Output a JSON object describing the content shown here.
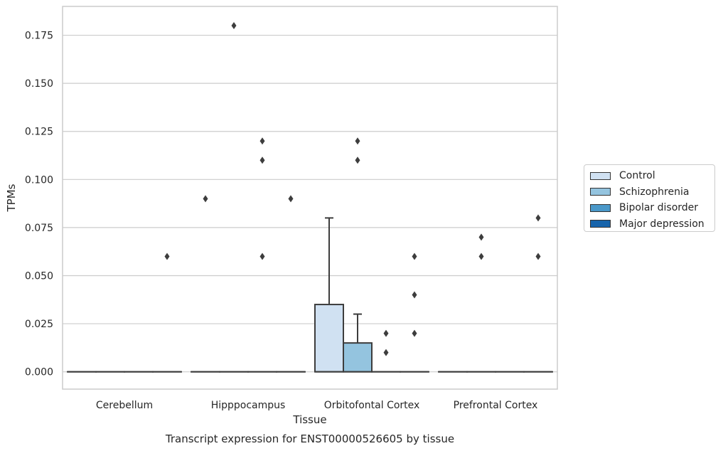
{
  "chart_data": {
    "type": "box",
    "title": "Transcript expression for ENST00000526605 by tissue",
    "xlabel": "Tissue",
    "ylabel": "TPMs",
    "ylim": [
      -0.009,
      0.19
    ],
    "yticks": [
      "0.000",
      "0.025",
      "0.050",
      "0.075",
      "0.100",
      "0.125",
      "0.150",
      "0.175"
    ],
    "categories": [
      "Cerebellum",
      "Hipppocampus",
      "Orbitofontal Cortex",
      "Prefrontal Cortex"
    ],
    "grid": true,
    "legend_position": "right",
    "series": [
      {
        "name": "Control",
        "color": "#d0e1f2",
        "boxes": [
          {
            "q1": 0,
            "median": 0,
            "q3": 0,
            "whisker_low": 0,
            "whisker_high": 0,
            "outliers": []
          },
          {
            "q1": 0,
            "median": 0,
            "q3": 0,
            "whisker_low": 0,
            "whisker_high": 0,
            "outliers": [
              0.09
            ]
          },
          {
            "q1": 0,
            "median": 0,
            "q3": 0.035,
            "whisker_low": 0,
            "whisker_high": 0.08,
            "outliers": []
          },
          {
            "q1": 0,
            "median": 0,
            "q3": 0,
            "whisker_low": 0,
            "whisker_high": 0,
            "outliers": []
          }
        ]
      },
      {
        "name": "Schizophrenia",
        "color": "#94c4df",
        "boxes": [
          {
            "q1": 0,
            "median": 0,
            "q3": 0,
            "whisker_low": 0,
            "whisker_high": 0,
            "outliers": []
          },
          {
            "q1": 0,
            "median": 0,
            "q3": 0,
            "whisker_low": 0,
            "whisker_high": 0,
            "outliers": [
              0.18
            ]
          },
          {
            "q1": 0,
            "median": 0,
            "q3": 0.015,
            "whisker_low": 0,
            "whisker_high": 0.03,
            "outliers": [
              0.11,
              0.12
            ]
          },
          {
            "q1": 0,
            "median": 0,
            "q3": 0,
            "whisker_low": 0,
            "whisker_high": 0,
            "outliers": [
              0.06,
              0.07
            ]
          }
        ]
      },
      {
        "name": "Bipolar disorder",
        "color": "#4a98c9",
        "boxes": [
          {
            "q1": 0,
            "median": 0,
            "q3": 0,
            "whisker_low": 0,
            "whisker_high": 0,
            "outliers": []
          },
          {
            "q1": 0,
            "median": 0,
            "q3": 0,
            "whisker_low": 0,
            "whisker_high": 0,
            "outliers": [
              0.06,
              0.11,
              0.12
            ]
          },
          {
            "q1": 0,
            "median": 0,
            "q3": 0,
            "whisker_low": 0,
            "whisker_high": 0,
            "outliers": [
              0.01,
              0.02
            ]
          },
          {
            "q1": 0,
            "median": 0,
            "q3": 0,
            "whisker_low": 0,
            "whisker_high": 0,
            "outliers": []
          }
        ]
      },
      {
        "name": "Major depression",
        "color": "#1764ab",
        "boxes": [
          {
            "q1": 0,
            "median": 0,
            "q3": 0,
            "whisker_low": 0,
            "whisker_high": 0,
            "outliers": [
              0.06
            ]
          },
          {
            "q1": 0,
            "median": 0,
            "q3": 0,
            "whisker_low": 0,
            "whisker_high": 0,
            "outliers": [
              0.09
            ]
          },
          {
            "q1": 0,
            "median": 0,
            "q3": 0,
            "whisker_low": 0,
            "whisker_high": 0,
            "outliers": [
              0.02,
              0.04,
              0.06
            ]
          },
          {
            "q1": 0,
            "median": 0,
            "q3": 0,
            "whisker_low": 0,
            "whisker_high": 0,
            "outliers": [
              0.06,
              0.08
            ]
          }
        ]
      }
    ]
  }
}
